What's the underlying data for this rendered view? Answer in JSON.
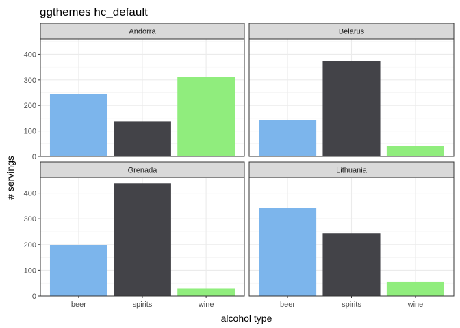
{
  "chart_data": {
    "type": "bar",
    "title": "ggthemes hc_default",
    "xlabel": "alcohol type",
    "ylabel": "# servings",
    "categories": [
      "beer",
      "spirits",
      "wine"
    ],
    "colors": [
      "#7cb5ec",
      "#434348",
      "#90ed7d"
    ],
    "ylim": [
      0,
      460
    ],
    "yticks": [
      0,
      100,
      200,
      300,
      400
    ],
    "grid": true,
    "legend": "none",
    "facets": [
      {
        "name": "Andorra",
        "values": [
          245,
          138,
          312
        ]
      },
      {
        "name": "Belarus",
        "values": [
          142,
          373,
          42
        ]
      },
      {
        "name": "Grenada",
        "values": [
          199,
          438,
          28
        ]
      },
      {
        "name": "Lithuania",
        "values": [
          343,
          244,
          56
        ]
      }
    ]
  }
}
